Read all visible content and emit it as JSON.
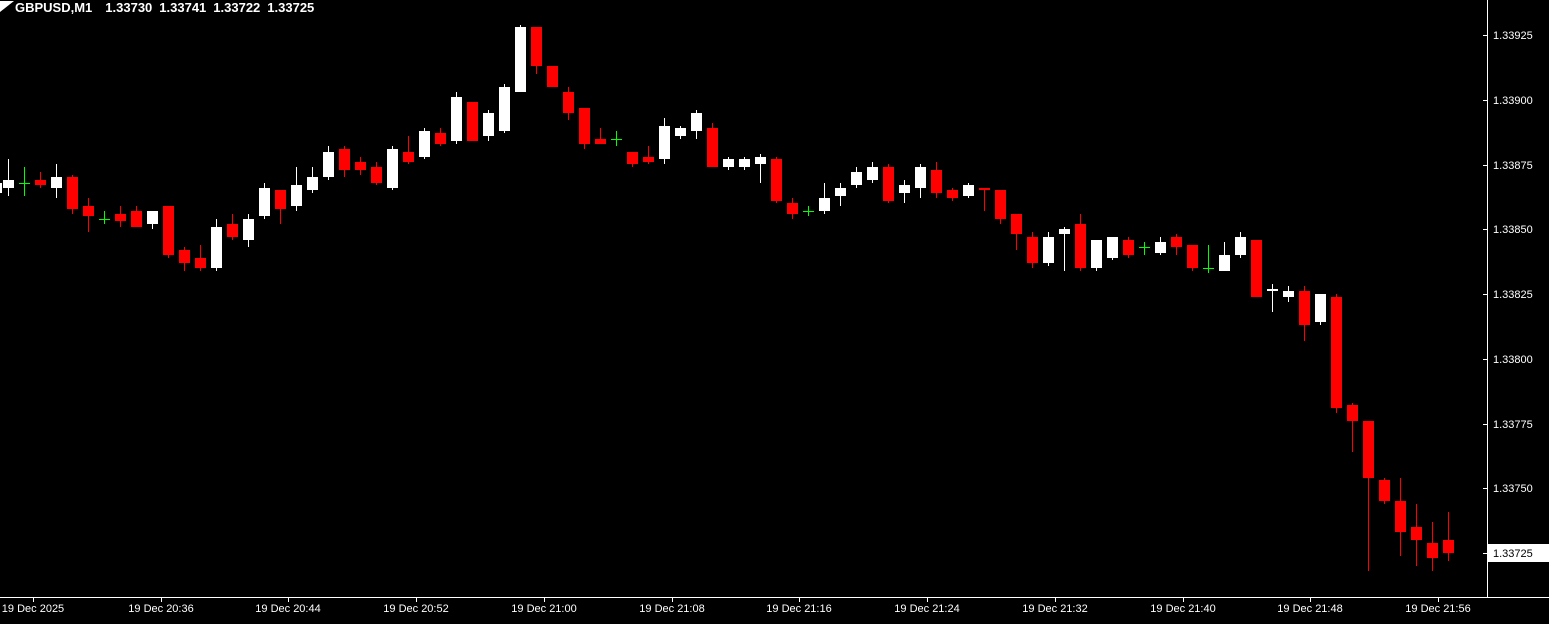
{
  "header": {
    "symbol": "GBPUSD,M1",
    "open": "1.33730",
    "high": "1.33741",
    "low": "1.33722",
    "close": "1.33725"
  },
  "colors": {
    "background": "#000000",
    "bull": "#FFFFFF",
    "bear": "#FF0000",
    "doji": "#00FF00",
    "axis_line": "#FFFFFF",
    "axis_text": "#FFFFFF",
    "price_tag_bg": "#FFFFFF",
    "price_tag_text": "#000000"
  },
  "price_axis": {
    "labels": [
      "1.33925",
      "1.33900",
      "1.33875",
      "1.33850",
      "1.33825",
      "1.33800",
      "1.33775",
      "1.33750",
      "1.33725"
    ],
    "current_price_tag": "1.33725"
  },
  "time_axis": {
    "labels": [
      "19 Dec 2025",
      "19 Dec 20:36",
      "19 Dec 20:44",
      "19 Dec 20:52",
      "19 Dec 21:00",
      "19 Dec 21:08",
      "19 Dec 21:16",
      "19 Dec 21:24",
      "19 Dec 21:32",
      "19 Dec 21:40",
      "19 Dec 21:48",
      "19 Dec 21:56"
    ]
  },
  "chart_data": {
    "type": "candlestick",
    "title": "GBPUSD,M1",
    "symbol": "GBPUSD",
    "timeframe": "M1",
    "ylabel": "price",
    "y_axis_top_label": 1.33925,
    "y_axis_bottom_label": 1.33725,
    "y_tick_step": 0.00025,
    "grid": false,
    "legend": false,
    "current_price": 1.33725,
    "columns": [
      "open",
      "high",
      "low",
      "close"
    ],
    "candles": [
      [
        1.33864,
        1.3387,
        1.33863,
        1.33868
      ],
      [
        1.33866,
        1.33877,
        1.33863,
        1.33869
      ],
      [
        1.33868,
        1.33874,
        1.33863,
        1.33868
      ],
      [
        1.33869,
        1.33872,
        1.33866,
        1.33867
      ],
      [
        1.33866,
        1.33875,
        1.33862,
        1.3387
      ],
      [
        1.3387,
        1.33871,
        1.33856,
        1.33858
      ],
      [
        1.33859,
        1.33862,
        1.33849,
        1.33855
      ],
      [
        1.33854,
        1.33857,
        1.33852,
        1.33854
      ],
      [
        1.33856,
        1.33859,
        1.33851,
        1.33853
      ],
      [
        1.33857,
        1.33859,
        1.33851,
        1.33851
      ],
      [
        1.33852,
        1.33857,
        1.3385,
        1.33857
      ],
      [
        1.33859,
        1.33859,
        1.33839,
        1.3384
      ],
      [
        1.33842,
        1.33843,
        1.33834,
        1.33837
      ],
      [
        1.33839,
        1.33844,
        1.33834,
        1.33835
      ],
      [
        1.33835,
        1.33854,
        1.33834,
        1.33851
      ],
      [
        1.33852,
        1.33856,
        1.33846,
        1.33847
      ],
      [
        1.33846,
        1.33856,
        1.33843,
        1.33854
      ],
      [
        1.33855,
        1.33868,
        1.33854,
        1.33866
      ],
      [
        1.33865,
        1.33865,
        1.33852,
        1.33858
      ],
      [
        1.33859,
        1.33874,
        1.33857,
        1.33867
      ],
      [
        1.33865,
        1.33874,
        1.33864,
        1.3387
      ],
      [
        1.3387,
        1.33882,
        1.33869,
        1.3388
      ],
      [
        1.33881,
        1.33882,
        1.3387,
        1.33873
      ],
      [
        1.33876,
        1.33878,
        1.33871,
        1.33873
      ],
      [
        1.33874,
        1.33876,
        1.33867,
        1.33868
      ],
      [
        1.33866,
        1.33882,
        1.33865,
        1.33881
      ],
      [
        1.3388,
        1.33886,
        1.33875,
        1.33876
      ],
      [
        1.33878,
        1.33889,
        1.33877,
        1.33888
      ],
      [
        1.33887,
        1.33889,
        1.33882,
        1.33883
      ],
      [
        1.33884,
        1.33903,
        1.33883,
        1.33901
      ],
      [
        1.33899,
        1.33899,
        1.33884,
        1.33884
      ],
      [
        1.33886,
        1.33896,
        1.33884,
        1.33895
      ],
      [
        1.33888,
        1.33906,
        1.33887,
        1.33905
      ],
      [
        1.33903,
        1.33929,
        1.33903,
        1.33928
      ],
      [
        1.33928,
        1.33928,
        1.3391,
        1.33913
      ],
      [
        1.33913,
        1.33913,
        1.33905,
        1.33905
      ],
      [
        1.33903,
        1.33905,
        1.33892,
        1.33895
      ],
      [
        1.33897,
        1.33897,
        1.33881,
        1.33883
      ],
      [
        1.33885,
        1.33889,
        1.33883,
        1.33883
      ],
      [
        1.33885,
        1.33888,
        1.33882,
        1.33885
      ],
      [
        1.3388,
        1.3388,
        1.33874,
        1.33875
      ],
      [
        1.33878,
        1.33882,
        1.33875,
        1.33876
      ],
      [
        1.33877,
        1.33893,
        1.33875,
        1.3389
      ],
      [
        1.33886,
        1.3389,
        1.33885,
        1.33889
      ],
      [
        1.33888,
        1.33896,
        1.33885,
        1.33895
      ],
      [
        1.33889,
        1.33891,
        1.33874,
        1.33874
      ],
      [
        1.33874,
        1.33878,
        1.33873,
        1.33877
      ],
      [
        1.33874,
        1.33878,
        1.33873,
        1.33877
      ],
      [
        1.33875,
        1.33879,
        1.33868,
        1.33878
      ],
      [
        1.33877,
        1.33878,
        1.3386,
        1.33861
      ],
      [
        1.3386,
        1.33862,
        1.33854,
        1.33856
      ],
      [
        1.33857,
        1.33859,
        1.33855,
        1.33857
      ],
      [
        1.33857,
        1.33868,
        1.33856,
        1.33862
      ],
      [
        1.33863,
        1.33868,
        1.33859,
        1.33866
      ],
      [
        1.33867,
        1.33874,
        1.33866,
        1.33872
      ],
      [
        1.33869,
        1.33876,
        1.33868,
        1.33874
      ],
      [
        1.33874,
        1.33875,
        1.3386,
        1.33861
      ],
      [
        1.33864,
        1.33869,
        1.3386,
        1.33867
      ],
      [
        1.33866,
        1.33875,
        1.33862,
        1.33874
      ],
      [
        1.33873,
        1.33876,
        1.33862,
        1.33864
      ],
      [
        1.33865,
        1.33866,
        1.33861,
        1.33862
      ],
      [
        1.33863,
        1.33868,
        1.33862,
        1.33867
      ],
      [
        1.33866,
        1.33866,
        1.33857,
        1.33865
      ],
      [
        1.33865,
        1.33865,
        1.33852,
        1.33854
      ],
      [
        1.33856,
        1.33856,
        1.33842,
        1.33848
      ],
      [
        1.33847,
        1.33849,
        1.33835,
        1.33837
      ],
      [
        1.33837,
        1.33849,
        1.33836,
        1.33847
      ],
      [
        1.33848,
        1.33851,
        1.33834,
        1.3385
      ],
      [
        1.33852,
        1.33856,
        1.33834,
        1.33835
      ],
      [
        1.33835,
        1.33846,
        1.33834,
        1.33846
      ],
      [
        1.33839,
        1.33847,
        1.33838,
        1.33847
      ],
      [
        1.33846,
        1.33847,
        1.33839,
        1.3384
      ],
      [
        1.33843,
        1.33845,
        1.3384,
        1.33843
      ],
      [
        1.33841,
        1.33847,
        1.3384,
        1.33845
      ],
      [
        1.33847,
        1.33848,
        1.3384,
        1.33843
      ],
      [
        1.33844,
        1.33844,
        1.33834,
        1.33835
      ],
      [
        1.33835,
        1.33844,
        1.33833,
        1.33835
      ],
      [
        1.33834,
        1.33845,
        1.33834,
        1.3384
      ],
      [
        1.3384,
        1.33849,
        1.33839,
        1.33847
      ],
      [
        1.33846,
        1.33846,
        1.33824,
        1.33824
      ],
      [
        1.33826,
        1.33829,
        1.33818,
        1.33827
      ],
      [
        1.33824,
        1.33828,
        1.33822,
        1.33826
      ],
      [
        1.33826,
        1.33828,
        1.33807,
        1.33813
      ],
      [
        1.33814,
        1.33825,
        1.33813,
        1.33825
      ],
      [
        1.33824,
        1.33825,
        1.33779,
        1.33781
      ],
      [
        1.33782,
        1.33783,
        1.33764,
        1.33776
      ],
      [
        1.33776,
        1.33776,
        1.33718,
        1.33754
      ],
      [
        1.33753,
        1.33754,
        1.33744,
        1.33745
      ],
      [
        1.33745,
        1.33754,
        1.33724,
        1.33733
      ],
      [
        1.33735,
        1.33744,
        1.3372,
        1.3373
      ],
      [
        1.33729,
        1.33737,
        1.33718,
        1.33723
      ],
      [
        1.3373,
        1.33741,
        1.33722,
        1.33725
      ]
    ]
  }
}
